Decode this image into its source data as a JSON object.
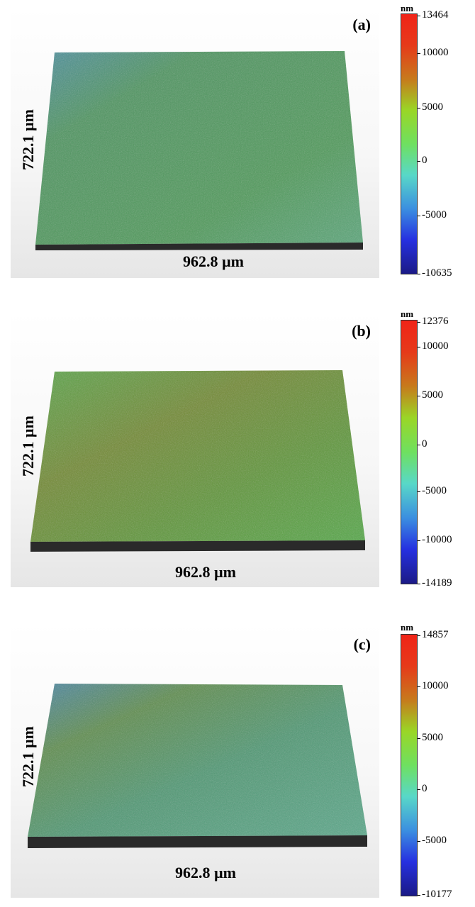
{
  "panels": [
    {
      "label": "(a)",
      "y_dimension": "722.1 µm",
      "x_dimension": "962.8 µm",
      "colorbar": {
        "unit": "nm",
        "max": "13464",
        "min": "-10635",
        "ticks": [
          "10000",
          "5000",
          "0",
          "-5000"
        ]
      }
    },
    {
      "label": "(b)",
      "y_dimension": "722.1 µm",
      "x_dimension": "962.8 µm",
      "colorbar": {
        "unit": "nm",
        "max": "12376",
        "min": "-14189",
        "ticks": [
          "10000",
          "5000",
          "0",
          "-5000",
          "-10000"
        ]
      }
    },
    {
      "label": "(c)",
      "y_dimension": "722.1 µm",
      "x_dimension": "962.8 µm",
      "colorbar": {
        "unit": "nm",
        "max": "14857",
        "min": "-10177",
        "ticks": [
          "10000",
          "5000",
          "0",
          "-5000"
        ]
      }
    }
  ],
  "colors": {
    "colormap": [
      "#1b1a86",
      "#2630e0",
      "#3b8fe0",
      "#58d8c8",
      "#6fe060",
      "#9ad626",
      "#c77a1c",
      "#e63a1a",
      "#f02418"
    ],
    "surface_a": "#4f9a5a",
    "surface_b": "#56983c",
    "surface_c": "#4f9873",
    "base": "#2a2a2a"
  }
}
